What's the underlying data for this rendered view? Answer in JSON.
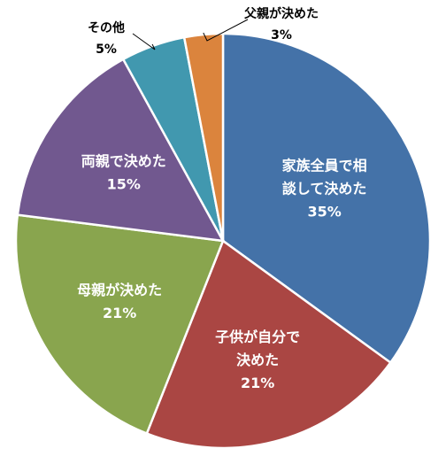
{
  "chart_data": {
    "type": "pie",
    "title": "",
    "slices": [
      {
        "label_lines": [
          "家族全員で相",
          "談して決めた"
        ],
        "value_label": "35%",
        "value": 35,
        "color": "#4472A8"
      },
      {
        "label_lines": [
          "子供が自分で",
          "決めた"
        ],
        "value_label": "21%",
        "value": 21,
        "color": "#AA4643"
      },
      {
        "label_lines": [
          "母親が決めた"
        ],
        "value_label": "21%",
        "value": 21,
        "color": "#89A54E"
      },
      {
        "label_lines": [
          "両親で決めた"
        ],
        "value_label": "15%",
        "value": 15,
        "color": "#71588F"
      },
      {
        "label_lines": [
          "その他"
        ],
        "value_label": "5%",
        "value": 5,
        "color": "#4198AF"
      },
      {
        "label_lines": [
          "父親が決めた"
        ],
        "value_label": "3%",
        "value": 3,
        "color": "#DB843D"
      }
    ],
    "start_angle_deg": 0,
    "direction": "clockwise"
  }
}
